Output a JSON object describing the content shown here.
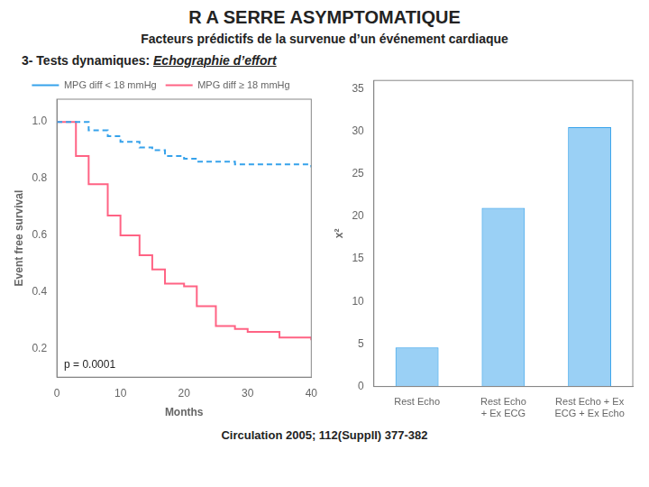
{
  "title": "R A SERRE ASYMPTOMATIQUE",
  "subtitle": "Facteurs prédictifs de la survenue d’un événement cardiaque",
  "section": "3- Tests dynamiques: ",
  "section_highlight": "Echographie d’effort",
  "citation": "Circulation 2005; 112(SupplI) 377-382",
  "chart_data": [
    {
      "type": "step",
      "x": [
        0,
        3,
        5,
        8,
        10,
        13,
        15,
        17,
        20,
        22,
        25,
        28,
        30,
        35,
        40
      ],
      "series": [
        {
          "name": "MPG diff < 18 mmHg",
          "line_style": "dashed",
          "values": [
            1.0,
            1.0,
            0.97,
            0.95,
            0.93,
            0.91,
            0.9,
            0.88,
            0.87,
            0.86,
            0.86,
            0.85,
            0.85,
            0.85,
            0.84
          ]
        },
        {
          "name": "MPG diff ≥ 18 mmHg",
          "line_style": "solid",
          "values": [
            1.0,
            0.88,
            0.78,
            0.67,
            0.6,
            0.53,
            0.48,
            0.43,
            0.42,
            0.35,
            0.28,
            0.27,
            0.26,
            0.24,
            0.23
          ]
        }
      ],
      "x_label": "Months",
      "y_label": "Event free survival",
      "xlim": [
        0,
        40
      ],
      "xticks": [
        0,
        10,
        20,
        30,
        40
      ],
      "ylim": [
        0.1,
        1.08
      ],
      "yticks": [
        0.2,
        0.4,
        0.6,
        0.8,
        {
          "value": 1.0,
          "label": "1.0"
        }
      ],
      "annotation": "p = 0.0001",
      "legend": "top",
      "grid": false
    },
    {
      "type": "bar",
      "categories": [
        "Rest Echo",
        "Rest Echo\n+ Ex ECG",
        "Rest Echo + Ex\nECG + Ex Echo"
      ],
      "values": [
        4.6,
        21,
        30.5
      ],
      "y_label": "x²",
      "ylim": [
        0,
        36
      ],
      "yticks": [
        0,
        5,
        10,
        15,
        20,
        25,
        30,
        35
      ],
      "grid": false
    }
  ]
}
